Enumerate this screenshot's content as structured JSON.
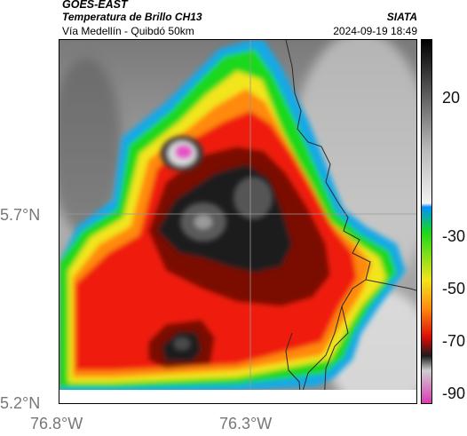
{
  "header": {
    "satellite": "GOES-EAST",
    "product": "Temperatura de Brillo CH13",
    "region": "Vía Medellín - Quibdó 50km",
    "agency": "SIATA",
    "datetime": "2024-09-19 18:49"
  },
  "map": {
    "lat_ticks": [
      "5.7°N",
      "5.2°N"
    ],
    "lon_ticks": [
      "76.8°W",
      "76.3°W"
    ],
    "gridlines": true
  },
  "colorbar": {
    "ticks": [
      "20",
      "-30",
      "-50",
      "-70",
      "-90"
    ],
    "colors": [
      "#ff66cc",
      "#ffffff",
      "#000000",
      "#ff0000",
      "#ff7f00",
      "#ffff00",
      "#00ff00",
      "#00a0ff",
      "#e0e0e0",
      "#606060",
      "#000000"
    ]
  }
}
